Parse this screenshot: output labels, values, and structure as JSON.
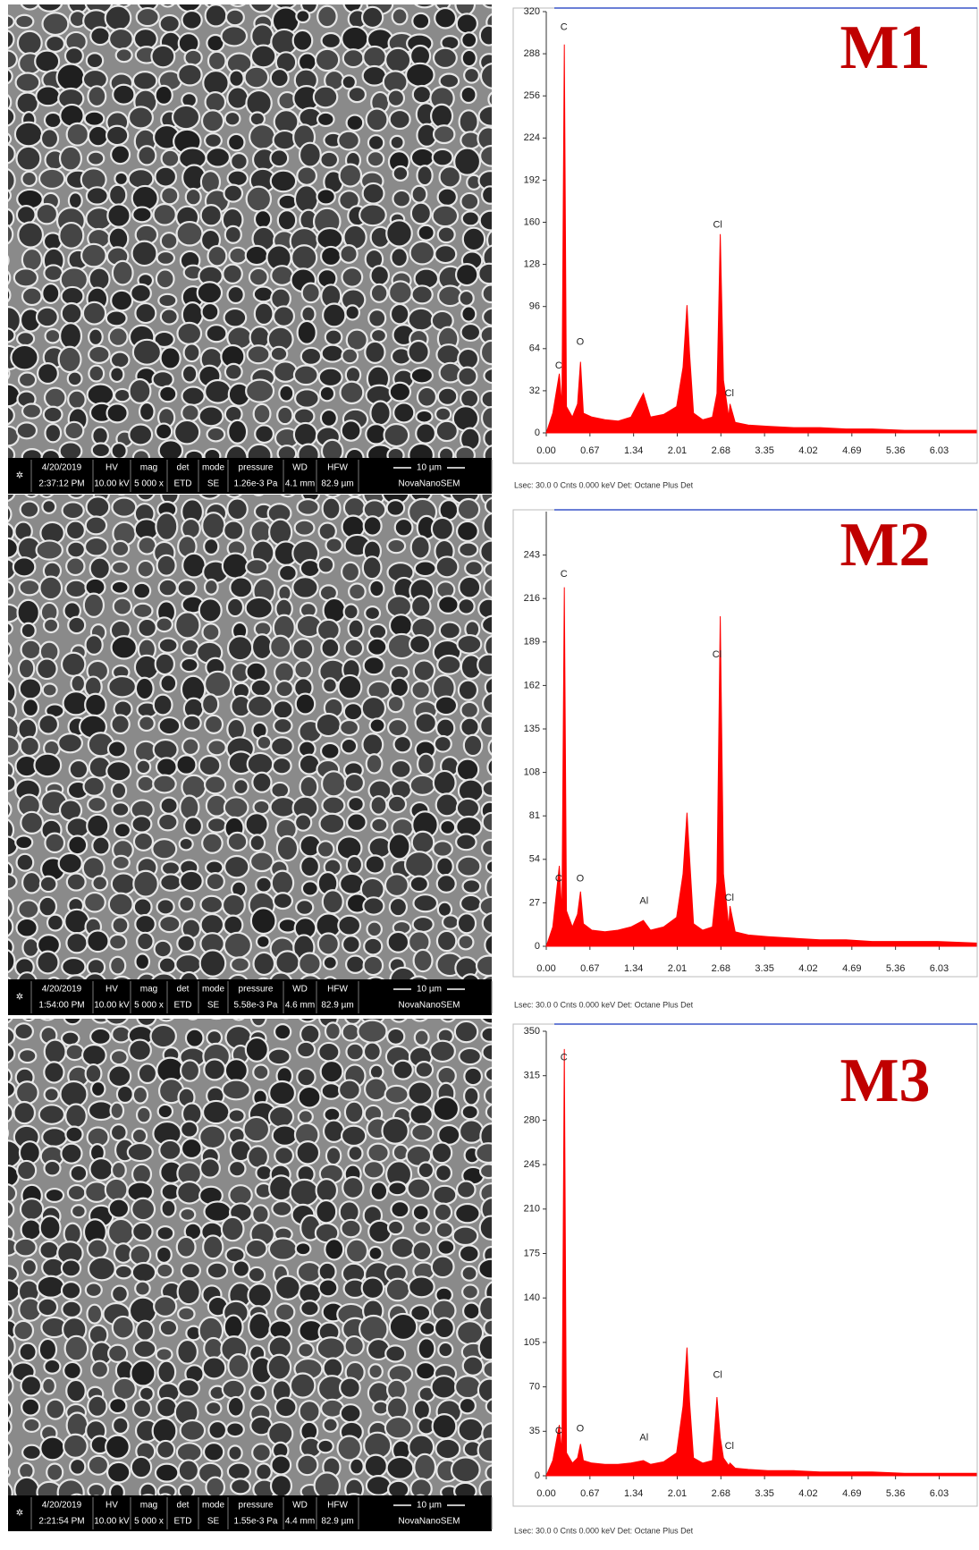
{
  "chart_data": [
    {
      "type": "area",
      "title": "M1",
      "color": "#ff0000",
      "x": [
        0,
        0.1,
        0.2,
        0.24,
        0.277,
        0.31,
        0.4,
        0.48,
        0.525,
        0.57,
        0.7,
        0.9,
        1.1,
        1.3,
        1.49,
        1.6,
        1.8,
        2.0,
        2.1,
        2.16,
        2.2,
        2.26,
        2.4,
        2.55,
        2.62,
        2.67,
        2.72,
        2.8,
        2.82,
        2.9,
        3.1,
        3.4,
        3.8,
        4.2,
        4.6,
        5.0,
        5.5,
        6.0,
        6.6
      ],
      "values": [
        0,
        15,
        45,
        20,
        295,
        20,
        12,
        22,
        54,
        15,
        12,
        10,
        9,
        12,
        30,
        12,
        14,
        20,
        50,
        97,
        60,
        15,
        10,
        12,
        30,
        151,
        40,
        12,
        22,
        8,
        6,
        5,
        4,
        4,
        3,
        3,
        2,
        2,
        2
      ],
      "xlim": [
        0,
        6.6
      ],
      "ylim": [
        0,
        320
      ],
      "xticks": [
        {
          "value": 0,
          "label": "0.00"
        },
        0.67,
        1.34,
        2.01,
        2.68,
        3.35,
        4.02,
        4.69,
        5.36,
        6.03
      ],
      "yticks": [
        0,
        32,
        64,
        96,
        128,
        160,
        192,
        224,
        256,
        288,
        320
      ],
      "annotations": [
        {
          "text": "C",
          "x": 0.19,
          "y": 51
        },
        {
          "text": "C",
          "x": 0.27,
          "y": 308
        },
        {
          "text": "O",
          "x": 0.52,
          "y": 69
        },
        {
          "text": "Cl",
          "x": 2.63,
          "y": 158
        },
        {
          "text": "Cl",
          "x": 2.81,
          "y": 30
        }
      ],
      "footnote": "Lsec: 30.0 0 Cnts 0.000 keV Det: Octane Plus Det"
    },
    {
      "type": "area",
      "title": "M2",
      "color": "#ff0000",
      "x": [
        0,
        0.1,
        0.2,
        0.24,
        0.277,
        0.31,
        0.4,
        0.48,
        0.525,
        0.57,
        0.7,
        0.9,
        1.1,
        1.3,
        1.49,
        1.6,
        1.8,
        2.0,
        2.1,
        2.16,
        2.2,
        2.26,
        2.4,
        2.55,
        2.62,
        2.67,
        2.72,
        2.8,
        2.82,
        2.9,
        3.1,
        3.4,
        3.8,
        4.2,
        4.6,
        5.0,
        5.5,
        6.0,
        6.6
      ],
      "values": [
        0,
        12,
        50,
        20,
        223,
        22,
        12,
        20,
        34,
        14,
        10,
        9,
        10,
        12,
        16,
        10,
        12,
        18,
        45,
        83,
        55,
        14,
        10,
        12,
        40,
        205,
        45,
        12,
        25,
        9,
        7,
        6,
        5,
        4,
        4,
        3,
        3,
        3,
        2
      ],
      "xlim": [
        0,
        6.6
      ],
      "ylim": [
        0,
        270
      ],
      "xticks": [
        {
          "value": 0,
          "label": "0.00"
        },
        0.67,
        1.34,
        2.01,
        2.68,
        3.35,
        4.02,
        4.69,
        5.36,
        6.03
      ],
      "yticks": [
        0,
        27,
        54,
        81,
        108,
        135,
        162,
        189,
        216,
        243
      ],
      "annotations": [
        {
          "text": "C",
          "x": 0.19,
          "y": 42
        },
        {
          "text": "C",
          "x": 0.27,
          "y": 231
        },
        {
          "text": "O",
          "x": 0.52,
          "y": 42
        },
        {
          "text": "Al",
          "x": 1.5,
          "y": 28
        },
        {
          "text": "Cl",
          "x": 2.62,
          "y": 181
        },
        {
          "text": "Cl",
          "x": 2.81,
          "y": 30
        }
      ],
      "footnote": "Lsec: 30.0 0 Cnts 0.000 keV Det: Octane Plus Det"
    },
    {
      "type": "area",
      "title": "M3",
      "color": "#ff0000",
      "x": [
        0,
        0.1,
        0.2,
        0.24,
        0.277,
        0.31,
        0.4,
        0.48,
        0.525,
        0.57,
        0.7,
        0.9,
        1.1,
        1.3,
        1.49,
        1.6,
        1.8,
        2.0,
        2.1,
        2.16,
        2.2,
        2.26,
        2.4,
        2.55,
        2.62,
        2.67,
        2.72,
        2.8,
        2.82,
        2.9,
        3.1,
        3.4,
        3.8,
        4.2,
        4.6,
        5.0,
        5.5,
        6.0,
        6.6
      ],
      "values": [
        0,
        12,
        40,
        18,
        336,
        18,
        10,
        14,
        25,
        12,
        10,
        9,
        9,
        10,
        12,
        9,
        11,
        18,
        55,
        101,
        58,
        14,
        10,
        12,
        62,
        30,
        14,
        8,
        10,
        6,
        5,
        4,
        4,
        3,
        3,
        3,
        2,
        2,
        2
      ],
      "xlim": [
        0,
        6.6
      ],
      "ylim": [
        0,
        350
      ],
      "xticks": [
        {
          "value": 0,
          "label": "0.00"
        },
        0.67,
        1.34,
        2.01,
        2.68,
        3.35,
        4.02,
        4.69,
        5.36,
        6.03
      ],
      "yticks": [
        0,
        35,
        70,
        105,
        140,
        175,
        210,
        245,
        280,
        315,
        350
      ],
      "annotations": [
        {
          "text": "C",
          "x": 0.19,
          "y": 35
        },
        {
          "text": "C",
          "x": 0.27,
          "y": 329
        },
        {
          "text": "O",
          "x": 0.52,
          "y": 37
        },
        {
          "text": "Al",
          "x": 1.5,
          "y": 30
        },
        {
          "text": "Cl",
          "x": 2.63,
          "y": 79
        },
        {
          "text": "Cl",
          "x": 2.81,
          "y": 23
        }
      ],
      "footnote": "Lsec: 30.0 0 Cnts 0.000 keV Det: Octane Plus Det"
    }
  ],
  "sem_panels": [
    {
      "date": "4/20/2019",
      "time": "2:37:12 PM",
      "fields": [
        {
          "label": "HV",
          "value": "10.00 kV"
        },
        {
          "label": "mag",
          "value": "5 000 x"
        },
        {
          "label": "det",
          "value": "ETD"
        },
        {
          "label": "mode",
          "value": "SE"
        },
        {
          "label": "pressure",
          "value": "1.26e-3 Pa"
        },
        {
          "label": "WD",
          "value": "4.1 mm"
        },
        {
          "label": "HFW",
          "value": "82.9 µm"
        }
      ],
      "scale": "10 µm",
      "instrument": "NovaNanoSEM"
    },
    {
      "date": "4/20/2019",
      "time": "1:54:00 PM",
      "fields": [
        {
          "label": "HV",
          "value": "10.00 kV"
        },
        {
          "label": "mag",
          "value": "5 000 x"
        },
        {
          "label": "det",
          "value": "ETD"
        },
        {
          "label": "mode",
          "value": "SE"
        },
        {
          "label": "pressure",
          "value": "5.58e-3 Pa"
        },
        {
          "label": "WD",
          "value": "4.6 mm"
        },
        {
          "label": "HFW",
          "value": "82.9 µm"
        }
      ],
      "scale": "10 µm",
      "instrument": "NovaNanoSEM"
    },
    {
      "date": "4/20/2019",
      "time": "2:21:54 PM",
      "fields": [
        {
          "label": "HV",
          "value": "10.00 kV"
        },
        {
          "label": "mag",
          "value": "5 000 x"
        },
        {
          "label": "det",
          "value": "ETD"
        },
        {
          "label": "mode",
          "value": "SE"
        },
        {
          "label": "pressure",
          "value": "1.55e-3 Pa"
        },
        {
          "label": "WD",
          "value": "4.4 mm"
        },
        {
          "label": "HFW",
          "value": "82.9 µm"
        }
      ],
      "scale": "10 µm",
      "instrument": "NovaNanoSEM"
    }
  ]
}
